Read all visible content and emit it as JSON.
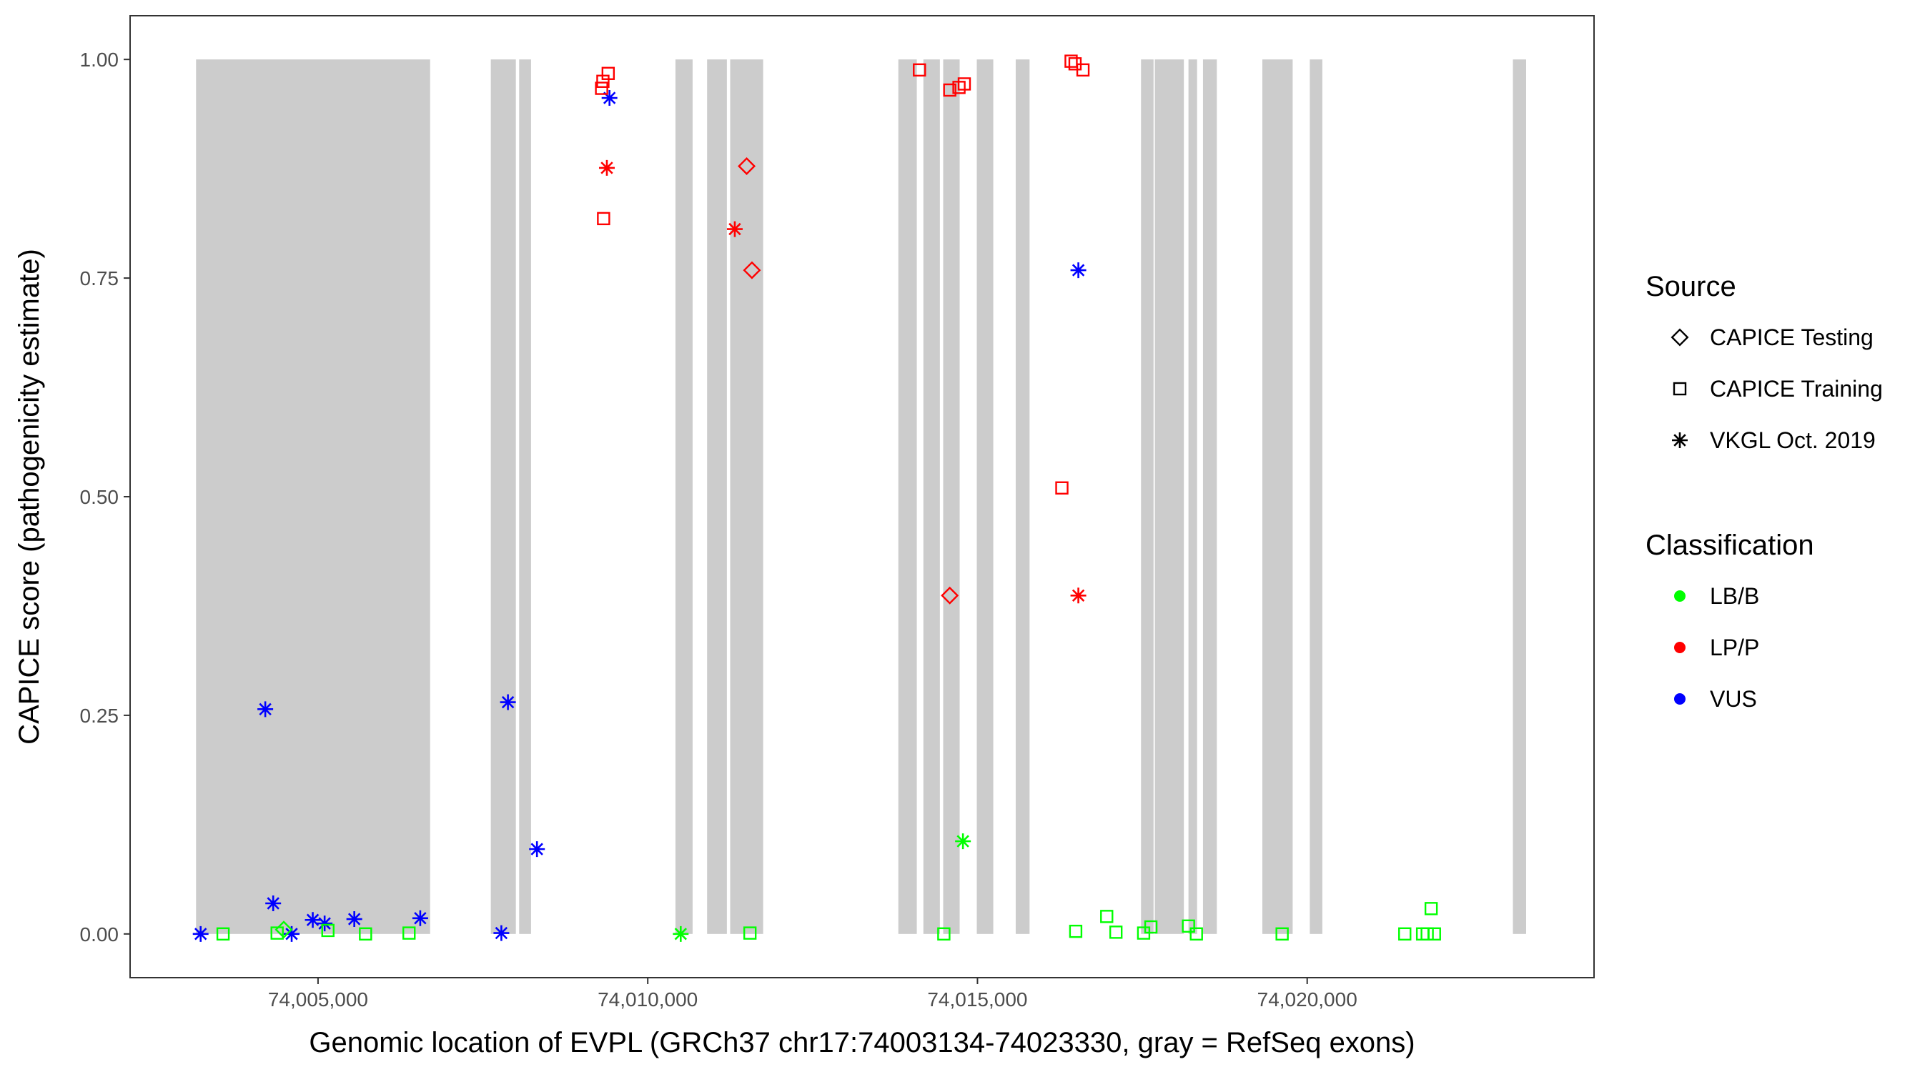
{
  "chart_data": {
    "type": "scatter",
    "xlabel": "Genomic location of EVPL (GRCh37 chr17:74003134-74023330, gray = RefSeq exons)",
    "ylabel": "CAPICE score (pathogenicity estimate)",
    "xlim": [
      74002150,
      74024350
    ],
    "ylim": [
      -0.05,
      1.05
    ],
    "x_ticks": [
      74005000,
      74010000,
      74015000,
      74020000
    ],
    "x_tick_labels": [
      "74,005,000",
      "74,010,000",
      "74,015,000",
      "74,020,000"
    ],
    "y_ticks": [
      0,
      0.25,
      0.5,
      0.75,
      1.0
    ],
    "y_tick_labels": [
      "0.00",
      "0.25",
      "0.50",
      "0.75",
      "1.00"
    ],
    "grid": false,
    "exon_color": "#cccccc",
    "exons": [
      [
        74003150,
        74006700
      ],
      [
        74007620,
        74008000
      ],
      [
        74008050,
        74008230
      ],
      [
        74010420,
        74010680
      ],
      [
        74010900,
        74011200
      ],
      [
        74011250,
        74011750
      ],
      [
        74013800,
        74014080
      ],
      [
        74014180,
        74014430
      ],
      [
        74014480,
        74014730
      ],
      [
        74014990,
        74015240
      ],
      [
        74015580,
        74015790
      ],
      [
        74017480,
        74017670
      ],
      [
        74017690,
        74018130
      ],
      [
        74018200,
        74018330
      ],
      [
        74018420,
        74018630
      ],
      [
        74019320,
        74019780
      ],
      [
        74020040,
        74020230
      ],
      [
        74023120,
        74023320
      ]
    ],
    "legend": {
      "position": "right",
      "source": {
        "title": "Source",
        "items": [
          {
            "label": "CAPICE Testing",
            "shape": "diamond"
          },
          {
            "label": "CAPICE Training",
            "shape": "square"
          },
          {
            "label": "VKGL Oct. 2019",
            "shape": "asterisk"
          }
        ]
      },
      "classification": {
        "title": "Classification",
        "items": [
          {
            "label": "LB/B",
            "color": "#00ff00"
          },
          {
            "label": "LP/P",
            "color": "#ff0000"
          },
          {
            "label": "VUS",
            "color": "#0000ff"
          }
        ]
      }
    },
    "points": [
      {
        "x": 74003220,
        "y": 0.0,
        "source": "VKGL Oct. 2019",
        "class": "VUS"
      },
      {
        "x": 74004200,
        "y": 0.257,
        "source": "VKGL Oct. 2019",
        "class": "VUS"
      },
      {
        "x": 74004320,
        "y": 0.035,
        "source": "VKGL Oct. 2019",
        "class": "VUS"
      },
      {
        "x": 74004600,
        "y": 0.0,
        "source": "VKGL Oct. 2019",
        "class": "VUS"
      },
      {
        "x": 74004920,
        "y": 0.016,
        "source": "VKGL Oct. 2019",
        "class": "VUS"
      },
      {
        "x": 74005100,
        "y": 0.012,
        "source": "VKGL Oct. 2019",
        "class": "VUS"
      },
      {
        "x": 74005550,
        "y": 0.017,
        "source": "VKGL Oct. 2019",
        "class": "VUS"
      },
      {
        "x": 74006550,
        "y": 0.018,
        "source": "VKGL Oct. 2019",
        "class": "VUS"
      },
      {
        "x": 74007780,
        "y": 0.001,
        "source": "VKGL Oct. 2019",
        "class": "VUS"
      },
      {
        "x": 74007880,
        "y": 0.265,
        "source": "VKGL Oct. 2019",
        "class": "VUS"
      },
      {
        "x": 74008320,
        "y": 0.097,
        "source": "VKGL Oct. 2019",
        "class": "VUS"
      },
      {
        "x": 74009420,
        "y": 0.956,
        "source": "VKGL Oct. 2019",
        "class": "VUS"
      },
      {
        "x": 74016530,
        "y": 0.759,
        "source": "VKGL Oct. 2019",
        "class": "VUS"
      },
      {
        "x": 74009380,
        "y": 0.876,
        "source": "VKGL Oct. 2019",
        "class": "LP/P"
      },
      {
        "x": 74011320,
        "y": 0.806,
        "source": "VKGL Oct. 2019",
        "class": "LP/P"
      },
      {
        "x": 74016530,
        "y": 0.387,
        "source": "VKGL Oct. 2019",
        "class": "LP/P"
      },
      {
        "x": 74010500,
        "y": 0.0,
        "source": "VKGL Oct. 2019",
        "class": "LB/B"
      },
      {
        "x": 74014780,
        "y": 0.106,
        "source": "VKGL Oct. 2019",
        "class": "LB/B"
      },
      {
        "x": 74011500,
        "y": 0.878,
        "source": "CAPICE Testing",
        "class": "LP/P"
      },
      {
        "x": 74011580,
        "y": 0.759,
        "source": "CAPICE Testing",
        "class": "LP/P"
      },
      {
        "x": 74014580,
        "y": 0.387,
        "source": "CAPICE Testing",
        "class": "LP/P"
      },
      {
        "x": 74004480,
        "y": 0.005,
        "source": "CAPICE Testing",
        "class": "LB/B"
      },
      {
        "x": 74009300,
        "y": 0.967,
        "source": "CAPICE Training",
        "class": "LP/P"
      },
      {
        "x": 74009320,
        "y": 0.975,
        "source": "CAPICE Training",
        "class": "LP/P"
      },
      {
        "x": 74009400,
        "y": 0.984,
        "source": "CAPICE Training",
        "class": "LP/P"
      },
      {
        "x": 74009330,
        "y": 0.818,
        "source": "CAPICE Training",
        "class": "LP/P"
      },
      {
        "x": 74014120,
        "y": 0.988,
        "source": "CAPICE Training",
        "class": "LP/P"
      },
      {
        "x": 74014580,
        "y": 0.965,
        "source": "CAPICE Training",
        "class": "LP/P"
      },
      {
        "x": 74014720,
        "y": 0.968,
        "source": "CAPICE Training",
        "class": "LP/P"
      },
      {
        "x": 74014800,
        "y": 0.972,
        "source": "CAPICE Training",
        "class": "LP/P"
      },
      {
        "x": 74016420,
        "y": 0.998,
        "source": "CAPICE Training",
        "class": "LP/P"
      },
      {
        "x": 74016480,
        "y": 0.995,
        "source": "CAPICE Training",
        "class": "LP/P"
      },
      {
        "x": 74016600,
        "y": 0.988,
        "source": "CAPICE Training",
        "class": "LP/P"
      },
      {
        "x": 74016280,
        "y": 0.51,
        "source": "CAPICE Training",
        "class": "LP/P"
      },
      {
        "x": 74003560,
        "y": 0.0,
        "source": "CAPICE Training",
        "class": "LB/B"
      },
      {
        "x": 74004380,
        "y": 0.001,
        "source": "CAPICE Training",
        "class": "LB/B"
      },
      {
        "x": 74005150,
        "y": 0.004,
        "source": "CAPICE Training",
        "class": "LB/B"
      },
      {
        "x": 74005720,
        "y": 0.0,
        "source": "CAPICE Training",
        "class": "LB/B"
      },
      {
        "x": 74006380,
        "y": 0.001,
        "source": "CAPICE Training",
        "class": "LB/B"
      },
      {
        "x": 74011550,
        "y": 0.001,
        "source": "CAPICE Training",
        "class": "LB/B"
      },
      {
        "x": 74014490,
        "y": 0.0,
        "source": "CAPICE Training",
        "class": "LB/B"
      },
      {
        "x": 74016490,
        "y": 0.003,
        "source": "CAPICE Training",
        "class": "LB/B"
      },
      {
        "x": 74016960,
        "y": 0.02,
        "source": "CAPICE Training",
        "class": "LB/B"
      },
      {
        "x": 74017100,
        "y": 0.002,
        "source": "CAPICE Training",
        "class": "LB/B"
      },
      {
        "x": 74017520,
        "y": 0.001,
        "source": "CAPICE Training",
        "class": "LB/B"
      },
      {
        "x": 74017630,
        "y": 0.008,
        "source": "CAPICE Training",
        "class": "LB/B"
      },
      {
        "x": 74018200,
        "y": 0.009,
        "source": "CAPICE Training",
        "class": "LB/B"
      },
      {
        "x": 74018320,
        "y": 0.0,
        "source": "CAPICE Training",
        "class": "LB/B"
      },
      {
        "x": 74019620,
        "y": 0.0,
        "source": "CAPICE Training",
        "class": "LB/B"
      },
      {
        "x": 74021480,
        "y": 0.0,
        "source": "CAPICE Training",
        "class": "LB/B"
      },
      {
        "x": 74021750,
        "y": 0.0,
        "source": "CAPICE Training",
        "class": "LB/B"
      },
      {
        "x": 74021820,
        "y": 0.0,
        "source": "CAPICE Training",
        "class": "LB/B"
      },
      {
        "x": 74021880,
        "y": 0.029,
        "source": "CAPICE Training",
        "class": "LB/B"
      },
      {
        "x": 74021930,
        "y": 0.0,
        "source": "CAPICE Training",
        "class": "LB/B"
      }
    ]
  }
}
